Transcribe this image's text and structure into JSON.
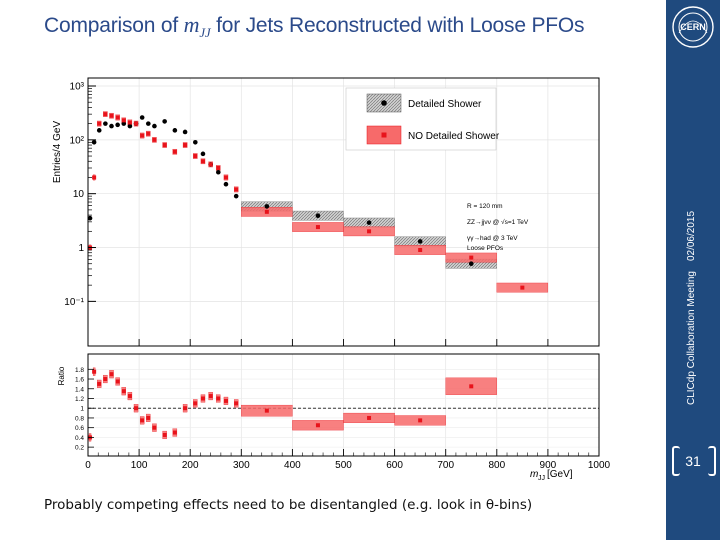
{
  "title": {
    "prefix": "Comparison of ",
    "var": "m",
    "sub": "JJ",
    "suffix": " for Jets Reconstructed with Loose PFOs"
  },
  "sidebar": {
    "meeting": "CLICdp Collaboration Meeting",
    "date": "02/06/2015",
    "page": "31",
    "logo_text": "CERN"
  },
  "note": "Probably competing effects need to be disentangled (e.g. look in θ-bins)",
  "colors": {
    "title": "#2b4a8a",
    "sidebar": "#1f4a7e",
    "no_shower": "#e8131b",
    "no_band": "#f76a6a",
    "detailed": "#000000",
    "detailed_band": "#9a9a9a"
  },
  "chart_data": [
    {
      "type": "scatter",
      "ylabel": "Entries/4 GeV",
      "yscale": "log",
      "ylim": [
        0.02,
        1000
      ],
      "xlim": [
        0,
        1000
      ],
      "y_ticks": [
        "10⁻¹",
        "1",
        "10",
        "10²",
        "10³"
      ],
      "legend": [
        {
          "label": "Detailed Shower"
        },
        {
          "label": "NO Detailed Shower"
        }
      ],
      "annotations": [
        "R = 120 mm",
        "ZZ→jjνν @ √s=1 TeV",
        "γγ→had @ 3 TeV",
        "Loose PFOs"
      ],
      "series": [
        {
          "name": "Detailed Shower",
          "x": [
            4,
            12,
            22,
            34,
            46,
            58,
            70,
            82,
            94,
            106,
            118,
            130,
            150,
            170,
            190,
            210,
            225,
            240,
            255,
            270,
            290,
            350,
            450,
            550,
            650,
            750
          ],
          "xw": [
            2,
            2,
            4,
            4,
            4,
            4,
            4,
            4,
            4,
            4,
            4,
            4,
            4,
            4,
            4,
            4,
            4,
            4,
            4,
            4,
            4,
            50,
            50,
            50,
            50,
            50
          ],
          "y": [
            3.5,
            90,
            150,
            200,
            180,
            190,
            200,
            180,
            200,
            260,
            200,
            180,
            220,
            150,
            140,
            90,
            55,
            35,
            25,
            15,
            9,
            5.8,
            3.9,
            2.9,
            1.3,
            0.5
          ]
        },
        {
          "name": "NO Detailed Shower",
          "x": [
            4,
            12,
            22,
            34,
            46,
            58,
            70,
            82,
            94,
            106,
            118,
            130,
            150,
            170,
            190,
            210,
            225,
            240,
            255,
            270,
            290,
            350,
            450,
            550,
            650,
            750,
            850
          ],
          "xw": [
            2,
            2,
            4,
            4,
            4,
            4,
            4,
            4,
            4,
            4,
            4,
            4,
            4,
            4,
            4,
            4,
            4,
            4,
            4,
            4,
            4,
            50,
            50,
            50,
            50,
            50,
            50
          ],
          "y": [
            1.0,
            20,
            200,
            300,
            280,
            260,
            230,
            210,
            200,
            120,
            130,
            100,
            80,
            60,
            80,
            50,
            40,
            35,
            30,
            20,
            12,
            4.6,
            2.4,
            2.0,
            0.9,
            0.65,
            0.18
          ]
        }
      ]
    },
    {
      "type": "scatter",
      "ylabel": "Ratio",
      "xlabel": "m",
      "xlabel_sub": "JJ",
      "xlabel_unit": " [GeV]",
      "ylim": [
        0.1,
        1.95
      ],
      "xlim": [
        0,
        1000
      ],
      "y_ticks": [
        "0.2",
        "0.4",
        "0.6",
        "0.8",
        "1",
        "1.2",
        "1.4",
        "1.6",
        "1.8"
      ],
      "x_ticks": [
        "0",
        "100",
        "200",
        "300",
        "400",
        "500",
        "600",
        "700",
        "800",
        "900",
        "1000"
      ],
      "reference_line": 1,
      "series": [
        {
          "name": "Ratio",
          "x": [
            4,
            12,
            22,
            34,
            46,
            58,
            70,
            82,
            94,
            106,
            118,
            130,
            150,
            170,
            190,
            210,
            225,
            240,
            255,
            270,
            290,
            350,
            450,
            550,
            650,
            750
          ],
          "xw": [
            2,
            2,
            4,
            4,
            4,
            4,
            4,
            4,
            4,
            4,
            4,
            4,
            4,
            4,
            4,
            4,
            4,
            4,
            4,
            4,
            4,
            50,
            50,
            50,
            50,
            50
          ],
          "y": [
            0.4,
            1.75,
            1.5,
            1.6,
            1.7,
            1.55,
            1.35,
            1.25,
            1.0,
            0.75,
            0.8,
            0.6,
            0.45,
            0.5,
            1.0,
            1.1,
            1.2,
            1.25,
            1.2,
            1.15,
            1.1,
            0.95,
            0.65,
            0.8,
            0.75,
            1.45
          ]
        }
      ]
    }
  ]
}
